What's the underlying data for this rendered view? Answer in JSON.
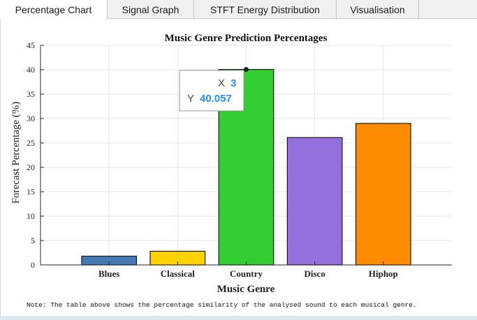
{
  "tabs": [
    {
      "label": "Percentage Chart",
      "active": true
    },
    {
      "label": "Signal Graph",
      "active": false
    },
    {
      "label": "STFT Energy Distribution",
      "active": false
    },
    {
      "label": "Visualisation",
      "active": false
    }
  ],
  "chart_data": {
    "type": "bar",
    "title": "Music Genre Prediction Percentages",
    "xlabel": "Music Genre",
    "ylabel": "Forecast Percentage (%)",
    "categories": [
      "Blues",
      "Classical",
      "Country",
      "Disco",
      "Hiphop"
    ],
    "values": [
      1.8,
      2.8,
      40.057,
      26.1,
      29.0
    ],
    "colors": [
      "#4479b4",
      "#ffd200",
      "#33cc33",
      "#9370db",
      "#ff8c00"
    ],
    "ylim": [
      0,
      45
    ],
    "yticks": [
      0,
      5,
      10,
      15,
      20,
      25,
      30,
      35,
      40,
      45
    ],
    "xlim": [
      0,
      6
    ],
    "grid": true
  },
  "datatip": {
    "x_label": "X",
    "x_value": "3",
    "y_label": "Y",
    "y_value": "40.057",
    "target_index": 2
  },
  "note": "Note: The table above shows the percentage similarity of the analysed sound to each musical genre."
}
